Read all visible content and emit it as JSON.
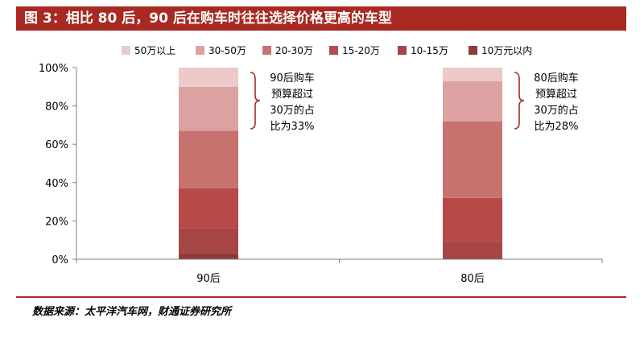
{
  "title": "图 3：相比 80 后，90 后在购车时往往选择价格更高的车型",
  "source": "数据来源：太平洋汽车网，财通证券研究所",
  "chart_data": {
    "type": "bar",
    "stacked": true,
    "percent": true,
    "categories": [
      "90后",
      "80后"
    ],
    "series": [
      {
        "name": "10万元以内",
        "color": "#8e3a38",
        "values": [
          3,
          0
        ]
      },
      {
        "name": "10-15万",
        "color": "#a54545",
        "values": [
          13,
          9
        ]
      },
      {
        "name": "15-20万",
        "color": "#b74a48",
        "values": [
          21,
          23
        ]
      },
      {
        "name": "20-30万",
        "color": "#c87270",
        "values": [
          30,
          40
        ]
      },
      {
        "name": "30-50万",
        "color": "#dca2a1",
        "values": [
          23,
          21
        ]
      },
      {
        "name": "50万以上",
        "color": "#ebcac9",
        "values": [
          10,
          7
        ]
      }
    ],
    "ylim": [
      0,
      100
    ],
    "yticks": [
      "0%",
      "20%",
      "40%",
      "60%",
      "80%",
      "100%"
    ],
    "legend_position": "top",
    "annotations": [
      {
        "category": "90后",
        "lines": [
          "90后购车",
          "预算超过",
          "30万的占",
          "比为33%"
        ]
      },
      {
        "category": "80后",
        "lines": [
          "80后购车",
          "预算超过",
          "30万的占",
          "比为28%"
        ]
      }
    ]
  }
}
